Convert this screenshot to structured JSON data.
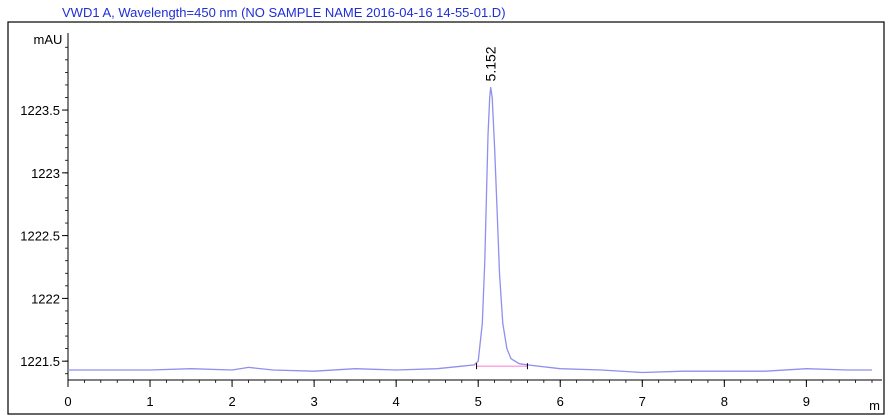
{
  "chart_data": {
    "type": "line",
    "title": "VWD1 A, Wavelength=450 nm (NO SAMPLE NAME 2016-04-16 14-55-01.D)",
    "ylabel": "mAU",
    "xlabel": "",
    "xlim": [
      0,
      9.8
    ],
    "ylim": [
      1221.35,
      1224.05
    ],
    "x_ticks": [
      0,
      1,
      2,
      3,
      4,
      5,
      6,
      7,
      8,
      9
    ],
    "x_tick_labels": [
      "0",
      "1",
      "2",
      "3",
      "4",
      "5",
      "6",
      "7",
      "8",
      "9"
    ],
    "y_ticks": [
      1221.5,
      1222,
      1222.5,
      1223,
      1223.5
    ],
    "y_tick_labels": [
      "1221.5",
      "1222",
      "1222.5",
      "1223",
      "1223.5"
    ],
    "axis_end_label": "m",
    "grid": false,
    "series": [
      {
        "color": "#8f8ff0",
        "x": [
          0.0,
          0.5,
          1.0,
          1.5,
          2.0,
          2.2,
          2.5,
          3.0,
          3.5,
          4.0,
          4.5,
          4.8,
          4.95,
          5.0,
          5.05,
          5.08,
          5.1,
          5.12,
          5.14,
          5.152,
          5.17,
          5.2,
          5.23,
          5.26,
          5.3,
          5.35,
          5.4,
          5.5,
          5.6,
          6.0,
          6.5,
          7.0,
          7.5,
          8.0,
          8.5,
          9.0,
          9.5,
          9.8
        ],
        "y": [
          1221.43,
          1221.43,
          1221.43,
          1221.44,
          1221.43,
          1221.45,
          1221.43,
          1221.42,
          1221.44,
          1221.43,
          1221.44,
          1221.46,
          1221.47,
          1221.5,
          1221.8,
          1222.3,
          1222.8,
          1223.3,
          1223.6,
          1223.68,
          1223.6,
          1223.2,
          1222.7,
          1222.2,
          1221.8,
          1221.6,
          1221.52,
          1221.48,
          1221.47,
          1221.44,
          1221.43,
          1221.41,
          1221.42,
          1221.42,
          1221.42,
          1221.44,
          1221.43,
          1221.43
        ]
      }
    ],
    "baseline": {
      "color": "#ff8ad8",
      "x": [
        4.98,
        5.6
      ],
      "y": [
        1221.46,
        1221.46
      ]
    },
    "annotations": [
      {
        "text": "5.152",
        "x": 5.152,
        "y": 1223.68
      }
    ]
  }
}
